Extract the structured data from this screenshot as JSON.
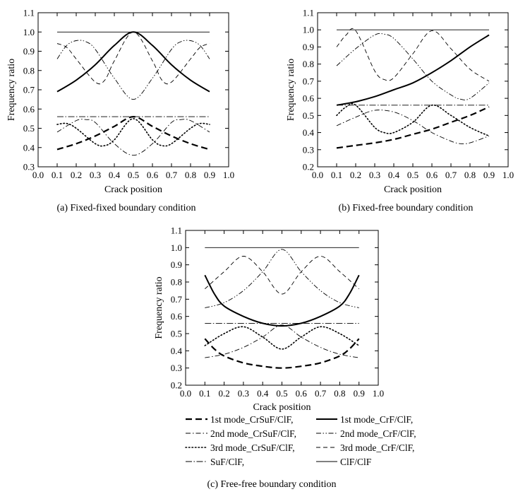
{
  "chart_data": [
    {
      "type": "line",
      "caption": "(a) Fixed-fixed boundary condition",
      "xlabel": "Crack position",
      "ylabel": "Frequency ratio",
      "xlim": [
        0.0,
        1.0
      ],
      "ylim": [
        0.3,
        1.1
      ],
      "xticks": [
        "0.0",
        "0.1",
        "0.2",
        "0.3",
        "0.4",
        "0.5",
        "0.6",
        "0.7",
        "0.8",
        "0.9",
        "1.0"
      ],
      "yticks": [
        "0.3",
        "0.4",
        "0.5",
        "0.6",
        "0.7",
        "0.8",
        "0.9",
        "1.0",
        "1.1"
      ],
      "grid": false,
      "series": [
        {
          "name": "1st mode_CrSuF/ClF,",
          "style": "dash-long",
          "x": [
            0.1,
            0.2,
            0.3,
            0.4,
            0.5,
            0.6,
            0.7,
            0.8,
            0.9
          ],
          "y": [
            0.39,
            0.42,
            0.46,
            0.51,
            0.56,
            0.51,
            0.46,
            0.42,
            0.39
          ]
        },
        {
          "name": "1st mode_CrF/ClF,",
          "style": "solid-thick",
          "x": [
            0.1,
            0.2,
            0.3,
            0.4,
            0.5,
            0.6,
            0.7,
            0.8,
            0.9
          ],
          "y": [
            0.69,
            0.75,
            0.83,
            0.93,
            1.0,
            0.93,
            0.83,
            0.75,
            0.69
          ]
        },
        {
          "name": "2nd mode_CrSuF/ClF,",
          "style": "dashdot",
          "x": [
            0.1,
            0.2,
            0.25,
            0.3,
            0.4,
            0.5,
            0.6,
            0.7,
            0.75,
            0.8,
            0.9
          ],
          "y": [
            0.48,
            0.54,
            0.545,
            0.53,
            0.42,
            0.36,
            0.42,
            0.53,
            0.545,
            0.54,
            0.48
          ]
        },
        {
          "name": "2nd mode_CrF/ClF,",
          "style": "dashdotdot",
          "x": [
            0.1,
            0.15,
            0.2,
            0.25,
            0.3,
            0.4,
            0.5,
            0.6,
            0.7,
            0.75,
            0.8,
            0.85,
            0.9
          ],
          "y": [
            0.86,
            0.93,
            0.955,
            0.95,
            0.91,
            0.76,
            0.65,
            0.76,
            0.91,
            0.95,
            0.955,
            0.93,
            0.86
          ]
        },
        {
          "name": "3rd mode_CrSuF/ClF,",
          "style": "dotted",
          "x": [
            0.1,
            0.15,
            0.2,
            0.3,
            0.35,
            0.4,
            0.5,
            0.6,
            0.65,
            0.7,
            0.8,
            0.85,
            0.9
          ],
          "y": [
            0.52,
            0.525,
            0.5,
            0.42,
            0.41,
            0.44,
            0.55,
            0.44,
            0.41,
            0.42,
            0.5,
            0.525,
            0.52
          ]
        },
        {
          "name": "3rd mode_CrF/ClF,",
          "style": "dash-short",
          "x": [
            0.1,
            0.15,
            0.2,
            0.3,
            0.35,
            0.4,
            0.5,
            0.6,
            0.65,
            0.7,
            0.8,
            0.85,
            0.9
          ],
          "y": [
            0.94,
            0.92,
            0.86,
            0.74,
            0.75,
            0.85,
            1.0,
            0.85,
            0.75,
            0.74,
            0.86,
            0.92,
            0.94
          ]
        },
        {
          "name": "SuF/ClF,",
          "style": "dashdot-fine",
          "x": [
            0.1,
            0.9
          ],
          "y": [
            0.56,
            0.56
          ]
        },
        {
          "name": "ClF/ClF",
          "style": "solid-thin",
          "x": [
            0.1,
            0.9
          ],
          "y": [
            1.0,
            1.0
          ]
        }
      ]
    },
    {
      "type": "line",
      "caption": "(b) Fixed-free boundary condition",
      "xlabel": "Crack position",
      "ylabel": "Frequency ratio",
      "xlim": [
        0.0,
        1.0
      ],
      "ylim": [
        0.2,
        1.1
      ],
      "xticks": [
        "0.0",
        "0.1",
        "0.2",
        "0.3",
        "0.4",
        "0.5",
        "0.6",
        "0.7",
        "0.8",
        "0.9",
        "1.0"
      ],
      "yticks": [
        "0.2",
        "0.3",
        "0.4",
        "0.5",
        "0.6",
        "0.7",
        "0.8",
        "0.9",
        "1.0",
        "1.1"
      ],
      "grid": false,
      "series": [
        {
          "name": "1st mode_CrSuF/ClF,",
          "style": "dash-long",
          "x": [
            0.1,
            0.2,
            0.3,
            0.4,
            0.5,
            0.6,
            0.7,
            0.8,
            0.9
          ],
          "y": [
            0.31,
            0.325,
            0.34,
            0.36,
            0.39,
            0.42,
            0.46,
            0.5,
            0.55
          ]
        },
        {
          "name": "1st mode_CrF/ClF,",
          "style": "solid-thick",
          "x": [
            0.1,
            0.2,
            0.3,
            0.4,
            0.5,
            0.6,
            0.7,
            0.8,
            0.9
          ],
          "y": [
            0.56,
            0.58,
            0.61,
            0.65,
            0.69,
            0.75,
            0.82,
            0.9,
            0.97
          ]
        },
        {
          "name": "2nd mode_CrSuF/ClF,",
          "style": "dashdot",
          "x": [
            0.1,
            0.2,
            0.3,
            0.4,
            0.5,
            0.6,
            0.7,
            0.75,
            0.8,
            0.9
          ],
          "y": [
            0.44,
            0.49,
            0.53,
            0.52,
            0.47,
            0.4,
            0.35,
            0.335,
            0.34,
            0.38
          ]
        },
        {
          "name": "2nd mode_CrF/ClF,",
          "style": "dashdotdot",
          "x": [
            0.1,
            0.2,
            0.3,
            0.35,
            0.4,
            0.5,
            0.6,
            0.7,
            0.75,
            0.8,
            0.9
          ],
          "y": [
            0.79,
            0.89,
            0.97,
            0.975,
            0.95,
            0.83,
            0.7,
            0.62,
            0.595,
            0.6,
            0.69
          ]
        },
        {
          "name": "3rd mode_CrSuF/ClF,",
          "style": "dotted",
          "x": [
            0.1,
            0.15,
            0.2,
            0.3,
            0.35,
            0.4,
            0.5,
            0.6,
            0.7,
            0.8,
            0.9
          ],
          "y": [
            0.5,
            0.55,
            0.56,
            0.43,
            0.4,
            0.4,
            0.46,
            0.56,
            0.5,
            0.43,
            0.38
          ]
        },
        {
          "name": "3rd mode_CrF/ClF,",
          "style": "dash-short",
          "x": [
            0.1,
            0.15,
            0.2,
            0.3,
            0.35,
            0.4,
            0.5,
            0.6,
            0.7,
            0.8,
            0.9
          ],
          "y": [
            0.9,
            0.97,
            0.995,
            0.76,
            0.71,
            0.72,
            0.86,
            0.995,
            0.89,
            0.77,
            0.7
          ]
        },
        {
          "name": "SuF/ClF,",
          "style": "dashdot-fine",
          "x": [
            0.1,
            0.9
          ],
          "y": [
            0.56,
            0.56
          ]
        },
        {
          "name": "ClF/ClF",
          "style": "solid-thin",
          "x": [
            0.1,
            0.9
          ],
          "y": [
            1.0,
            1.0
          ]
        }
      ]
    },
    {
      "type": "line",
      "caption": "(c) Free-free boundary condition",
      "xlabel": "Crack position",
      "ylabel": "Frequency ratio",
      "xlim": [
        0.0,
        1.0
      ],
      "ylim": [
        0.2,
        1.1
      ],
      "xticks": [
        "0.0",
        "0.1",
        "0.2",
        "0.3",
        "0.4",
        "0.5",
        "0.6",
        "0.7",
        "0.8",
        "0.9",
        "1.0"
      ],
      "yticks": [
        "0.2",
        "0.3",
        "0.4",
        "0.5",
        "0.6",
        "0.7",
        "0.8",
        "0.9",
        "1.0",
        "1.1"
      ],
      "grid": false,
      "series": [
        {
          "name": "1st mode_CrSuF/ClF,",
          "style": "dash-long",
          "x": [
            0.1,
            0.15,
            0.2,
            0.3,
            0.4,
            0.5,
            0.6,
            0.7,
            0.8,
            0.85,
            0.9
          ],
          "y": [
            0.47,
            0.41,
            0.37,
            0.33,
            0.31,
            0.3,
            0.31,
            0.33,
            0.37,
            0.41,
            0.47
          ]
        },
        {
          "name": "1st mode_CrF/ClF,",
          "style": "solid-thick",
          "x": [
            0.1,
            0.15,
            0.2,
            0.3,
            0.4,
            0.5,
            0.6,
            0.7,
            0.8,
            0.85,
            0.9
          ],
          "y": [
            0.84,
            0.73,
            0.66,
            0.6,
            0.56,
            0.545,
            0.56,
            0.6,
            0.66,
            0.73,
            0.84
          ]
        },
        {
          "name": "2nd mode_CrSuF/ClF,",
          "style": "dashdot",
          "x": [
            0.1,
            0.2,
            0.3,
            0.4,
            0.5,
            0.6,
            0.7,
            0.8,
            0.9
          ],
          "y": [
            0.36,
            0.38,
            0.42,
            0.48,
            0.55,
            0.48,
            0.42,
            0.38,
            0.36
          ]
        },
        {
          "name": "2nd mode_CrF/ClF,",
          "style": "dashdotdot",
          "x": [
            0.1,
            0.2,
            0.3,
            0.4,
            0.5,
            0.6,
            0.7,
            0.8,
            0.9
          ],
          "y": [
            0.65,
            0.68,
            0.75,
            0.86,
            0.99,
            0.86,
            0.75,
            0.68,
            0.65
          ]
        },
        {
          "name": "3rd mode_CrSuF/ClF,",
          "style": "dotted",
          "x": [
            0.1,
            0.2,
            0.3,
            0.4,
            0.5,
            0.6,
            0.7,
            0.8,
            0.9
          ],
          "y": [
            0.43,
            0.5,
            0.54,
            0.48,
            0.41,
            0.48,
            0.54,
            0.5,
            0.43
          ]
        },
        {
          "name": "3rd mode_CrF/ClF,",
          "style": "dash-short",
          "x": [
            0.1,
            0.2,
            0.3,
            0.4,
            0.5,
            0.6,
            0.7,
            0.8,
            0.9
          ],
          "y": [
            0.76,
            0.86,
            0.95,
            0.86,
            0.73,
            0.86,
            0.95,
            0.86,
            0.76
          ]
        },
        {
          "name": "SuF/ClF,",
          "style": "dashdot-fine",
          "x": [
            0.1,
            0.9
          ],
          "y": [
            0.56,
            0.56
          ]
        },
        {
          "name": "ClF/ClF",
          "style": "solid-thin",
          "x": [
            0.1,
            0.9
          ],
          "y": [
            1.0,
            1.0
          ]
        }
      ]
    }
  ],
  "legend": {
    "placement": "bottom",
    "entries": [
      {
        "label": "1st mode_CrSuF/ClF,",
        "style": "dash-long"
      },
      {
        "label": "1st mode_CrF/ClF,",
        "style": "solid-thick"
      },
      {
        "label": "2nd mode_CrSuF/ClF,",
        "style": "dashdot"
      },
      {
        "label": "2nd mode_CrF/ClF,",
        "style": "dashdotdot"
      },
      {
        "label": "3rd mode_CrSuF/ClF,",
        "style": "dotted"
      },
      {
        "label": "3rd mode_CrF/ClF,",
        "style": "dash-short"
      },
      {
        "label": "SuF/ClF,",
        "style": "dashdot-fine"
      },
      {
        "label": "ClF/ClF",
        "style": "solid-thin"
      }
    ]
  },
  "styles": {
    "dash-long": {
      "width": 2.2,
      "dash": "9 5"
    },
    "solid-thick": {
      "width": 2.0,
      "dash": ""
    },
    "dashdot": {
      "width": 0.9,
      "dash": "7 3 1.5 3"
    },
    "dashdotdot": {
      "width": 0.9,
      "dash": "7 2.5 1.5 2.5 1.5 2.5"
    },
    "dotted": {
      "width": 1.6,
      "dash": "1.5 3"
    },
    "dash-short": {
      "width": 0.9,
      "dash": "6 4"
    },
    "dashdot-fine": {
      "width": 0.9,
      "dash": "9 2.5 1.5 2.5"
    },
    "solid-thin": {
      "width": 0.9,
      "dash": ""
    }
  }
}
